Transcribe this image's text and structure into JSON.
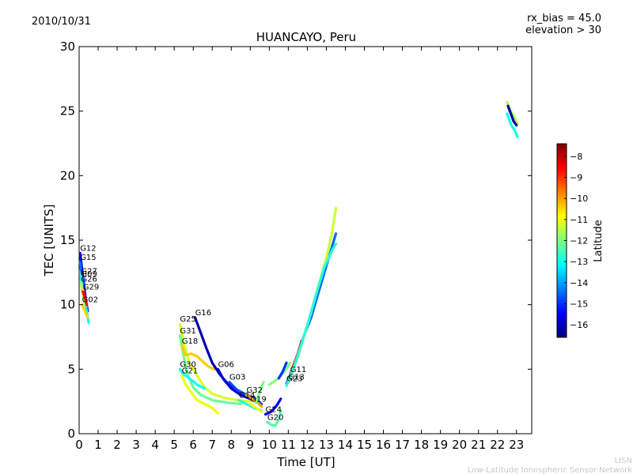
{
  "header": {
    "date": "2010/10/31",
    "rx_bias": "rx_bias = 45.0",
    "elevation": "elevation > 30"
  },
  "footer": {
    "line1": "LISN",
    "line2": "Low-Latitude Ionospheric Sensor Network"
  },
  "chart_data": {
    "type": "scatter",
    "title": "HUANCAYO, Peru",
    "xlabel": "Time [UT]",
    "ylabel": "TEC [UNITS]",
    "xlim": [
      0,
      23.8
    ],
    "ylim": [
      0,
      30
    ],
    "xticks": [
      0,
      1,
      2,
      3,
      4,
      5,
      6,
      7,
      8,
      9,
      10,
      11,
      12,
      13,
      14,
      15,
      16,
      17,
      18,
      19,
      20,
      21,
      22,
      23
    ],
    "yticks": [
      0,
      5,
      10,
      15,
      20,
      25,
      30
    ],
    "grid": false,
    "colorbar": {
      "label": "Latitude",
      "range": [
        -16.6,
        -7.4
      ],
      "ticks": [
        -8,
        -9,
        -10,
        -11,
        -12,
        -13,
        -14,
        -15,
        -16
      ],
      "colormap": [
        "#00007f",
        "#0000ff",
        "#007fff",
        "#00ffff",
        "#7fff7f",
        "#ffff00",
        "#ff7f00",
        "#ff0000",
        "#7f0000"
      ]
    },
    "series": [
      {
        "name": "G12",
        "lat": -15.5,
        "points": [
          [
            0.05,
            14.0
          ],
          [
            0.15,
            12.8
          ],
          [
            0.25,
            11.6
          ],
          [
            0.35,
            10.4
          ],
          [
            0.45,
            9.5
          ]
        ]
      },
      {
        "name": "G15",
        "lat": -14.5,
        "points": [
          [
            0.05,
            13.3
          ],
          [
            0.15,
            12.2
          ],
          [
            0.25,
            11.0
          ],
          [
            0.35,
            10.0
          ],
          [
            0.45,
            9.0
          ]
        ]
      },
      {
        "name": "G09",
        "lat": -9.0,
        "points": [
          [
            0.1,
            12.0
          ],
          [
            0.2,
            11.2
          ],
          [
            0.3,
            10.5
          ],
          [
            0.4,
            9.8
          ]
        ]
      },
      {
        "name": "G27",
        "lat": -13.0,
        "points": [
          [
            0.1,
            12.2
          ],
          [
            0.2,
            11.0
          ],
          [
            0.3,
            10.2
          ],
          [
            0.4,
            9.5
          ],
          [
            0.5,
            8.6
          ]
        ]
      },
      {
        "name": "G26",
        "lat": -11.5,
        "points": [
          [
            0.1,
            11.6
          ],
          [
            0.2,
            10.8
          ],
          [
            0.3,
            10.0
          ]
        ]
      },
      {
        "name": "G29",
        "lat": -8.5,
        "points": [
          [
            0.2,
            11.0
          ],
          [
            0.3,
            10.6
          ],
          [
            0.4,
            10.0
          ]
        ]
      },
      {
        "name": "G02",
        "lat": -10.5,
        "points": [
          [
            0.15,
            10.0
          ],
          [
            0.3,
            9.5
          ],
          [
            0.45,
            9.0
          ]
        ]
      },
      {
        "name": "G25",
        "lat": -11.2,
        "points": [
          [
            5.3,
            8.5
          ],
          [
            5.5,
            7.0
          ],
          [
            5.8,
            5.5
          ],
          [
            6.2,
            4.5
          ],
          [
            6.6,
            3.6
          ],
          [
            7.0,
            3.1
          ],
          [
            7.6,
            2.8
          ],
          [
            8.3,
            2.6
          ],
          [
            9.0,
            2.5
          ]
        ]
      },
      {
        "name": "G31",
        "lat": -12.2,
        "points": [
          [
            5.3,
            7.6
          ],
          [
            5.5,
            6.0
          ],
          [
            5.7,
            4.6
          ],
          [
            6.0,
            3.6
          ],
          [
            6.4,
            3.0
          ],
          [
            7.0,
            2.6
          ],
          [
            7.8,
            2.4
          ],
          [
            8.5,
            2.3
          ]
        ]
      },
      {
        "name": "G18",
        "lat": -10.4,
        "points": [
          [
            5.4,
            6.8
          ],
          [
            5.6,
            6.1
          ],
          [
            5.9,
            6.2
          ],
          [
            6.2,
            6.0
          ],
          [
            6.5,
            5.6
          ],
          [
            6.8,
            5.2
          ],
          [
            7.1,
            5.0
          ]
        ]
      },
      {
        "name": "G30",
        "lat": -13.0,
        "points": [
          [
            5.3,
            5.0
          ],
          [
            5.5,
            4.6
          ],
          [
            5.8,
            4.3
          ],
          [
            6.2,
            3.8
          ],
          [
            6.6,
            3.5
          ]
        ]
      },
      {
        "name": "G21",
        "lat": -11.0,
        "points": [
          [
            5.4,
            4.5
          ],
          [
            5.6,
            3.8
          ],
          [
            5.9,
            3.2
          ],
          [
            6.2,
            2.6
          ],
          [
            6.6,
            2.3
          ],
          [
            7.0,
            2.0
          ],
          [
            7.3,
            1.6
          ]
        ]
      },
      {
        "name": "G16",
        "lat": -16.2,
        "points": [
          [
            6.1,
            9.0
          ],
          [
            6.4,
            7.8
          ],
          [
            6.7,
            6.6
          ],
          [
            7.0,
            5.5
          ],
          [
            7.4,
            4.6
          ],
          [
            7.8,
            3.9
          ],
          [
            8.3,
            3.4
          ],
          [
            8.8,
            3.0
          ],
          [
            9.4,
            2.6
          ]
        ]
      },
      {
        "name": "G06",
        "lat": -15.8,
        "points": [
          [
            7.3,
            5.0
          ],
          [
            7.6,
            4.2
          ],
          [
            8.0,
            3.5
          ],
          [
            8.5,
            3.0
          ],
          [
            9.0,
            2.7
          ],
          [
            9.5,
            2.4
          ]
        ]
      },
      {
        "name": "G03",
        "lat": -14.8,
        "points": [
          [
            7.9,
            4.0
          ],
          [
            8.3,
            3.4
          ],
          [
            8.8,
            3.0
          ],
          [
            9.3,
            2.6
          ],
          [
            9.6,
            2.3
          ]
        ]
      },
      {
        "name": "G14",
        "lat": -12.8,
        "points": [
          [
            8.4,
            2.6
          ],
          [
            8.8,
            2.3
          ],
          [
            9.2,
            2.0
          ],
          [
            9.6,
            1.8
          ]
        ]
      },
      {
        "name": "G32",
        "lat": -10.0,
        "points": [
          [
            8.8,
            3.0
          ],
          [
            9.1,
            2.7
          ],
          [
            9.4,
            2.4
          ],
          [
            9.6,
            2.1
          ]
        ]
      },
      {
        "name": "G19",
        "lat": -11.0,
        "points": [
          [
            9.0,
            2.3
          ],
          [
            9.3,
            2.0
          ],
          [
            9.6,
            1.7
          ]
        ]
      },
      {
        "name": "G24",
        "lat": -15.5,
        "points": [
          [
            9.8,
            1.5
          ],
          [
            10.1,
            1.7
          ],
          [
            10.4,
            2.2
          ],
          [
            10.6,
            2.7
          ]
        ]
      },
      {
        "name": "G20",
        "lat": -12.4,
        "points": [
          [
            9.9,
            0.9
          ],
          [
            10.1,
            0.7
          ],
          [
            10.3,
            0.6
          ],
          [
            10.5,
            1.1
          ],
          [
            10.6,
            1.8
          ]
        ]
      },
      {
        "name": "G11",
        "lat": -8.5,
        "points": [
          [
            11.1,
            4.6
          ],
          [
            11.3,
            5.4
          ],
          [
            11.5,
            6.2
          ],
          [
            11.7,
            7.2
          ]
        ]
      },
      {
        "name": "G23",
        "lat": -14.5,
        "points": [
          [
            10.9,
            3.9
          ],
          [
            11.2,
            4.8
          ],
          [
            11.5,
            6.0
          ],
          [
            11.8,
            7.5
          ],
          [
            12.2,
            9.0
          ],
          [
            12.6,
            11.0
          ],
          [
            13.0,
            13.0
          ],
          [
            13.4,
            15.0
          ],
          [
            13.5,
            15.5
          ]
        ]
      },
      {
        "name": "G13",
        "lat": -11.3,
        "points": [
          [
            11.0,
            4.0
          ],
          [
            11.4,
            5.6
          ],
          [
            11.8,
            7.4
          ],
          [
            12.2,
            9.4
          ],
          [
            12.6,
            11.5
          ],
          [
            13.0,
            13.6
          ],
          [
            13.3,
            15.6
          ],
          [
            13.5,
            17.5
          ]
        ]
      },
      {
        "name": "",
        "lat": -12.8,
        "points": [
          [
            10.9,
            3.7
          ],
          [
            11.3,
            5.2
          ],
          [
            11.7,
            7.0
          ],
          [
            12.1,
            8.9
          ],
          [
            12.5,
            11.0
          ],
          [
            12.9,
            12.9
          ],
          [
            13.3,
            14.2
          ],
          [
            13.5,
            14.7
          ]
        ]
      },
      {
        "name": "",
        "lat": -12.0,
        "points": [
          [
            10.0,
            3.8
          ],
          [
            10.4,
            4.2
          ],
          [
            10.8,
            4.8
          ],
          [
            11.1,
            5.5
          ]
        ]
      },
      {
        "name": "",
        "lat": -15.0,
        "points": [
          [
            10.5,
            4.3
          ],
          [
            10.7,
            4.8
          ],
          [
            10.9,
            5.5
          ]
        ]
      },
      {
        "name": "",
        "lat": -12.0,
        "points": [
          [
            9.3,
            2.4
          ],
          [
            9.5,
            3.2
          ],
          [
            9.7,
            4.0
          ]
        ]
      },
      {
        "name": "",
        "lat": -11.5,
        "points": [
          [
            22.5,
            25.7
          ],
          [
            22.7,
            25.0
          ],
          [
            22.9,
            24.5
          ],
          [
            23.05,
            24.0
          ]
        ]
      },
      {
        "name": "",
        "lat": -13.0,
        "points": [
          [
            22.5,
            24.8
          ],
          [
            22.7,
            24.0
          ],
          [
            22.9,
            23.5
          ],
          [
            23.05,
            23.0
          ]
        ]
      },
      {
        "name": "",
        "lat": -16.2,
        "points": [
          [
            22.55,
            25.4
          ],
          [
            22.7,
            24.8
          ],
          [
            22.85,
            24.2
          ],
          [
            23.0,
            23.9
          ]
        ]
      }
    ]
  }
}
